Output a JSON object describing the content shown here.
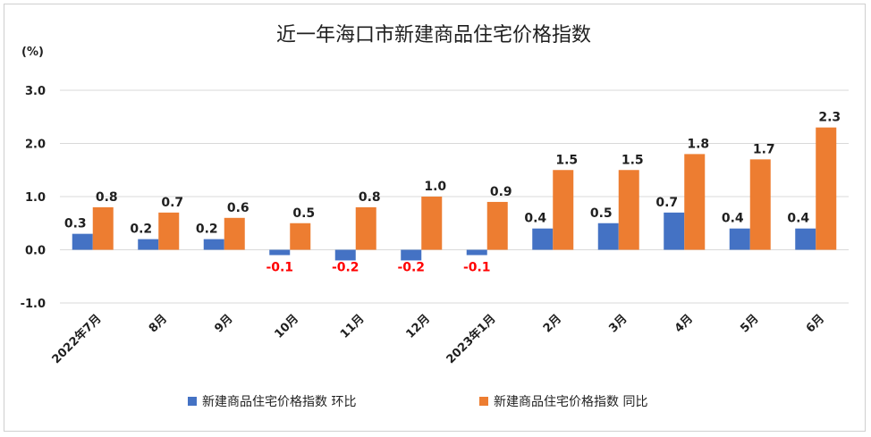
{
  "chart_data": {
    "type": "bar",
    "title": "近一年海口市新建商品住宅价格指数",
    "unit_label": "(%)",
    "categories": [
      "2022年7月",
      "8月",
      "9月",
      "10月",
      "11月",
      "12月",
      "2023年1月",
      "2月",
      "3月",
      "4月",
      "5月",
      "6月"
    ],
    "series": [
      {
        "name": "新建商品住宅价格指数 环比",
        "color": "#4472C4",
        "values": [
          0.3,
          0.2,
          0.2,
          -0.1,
          -0.2,
          -0.2,
          -0.1,
          0.4,
          0.5,
          0.7,
          0.4,
          0.4
        ],
        "labels": [
          "0.3",
          "0.2",
          "0.2",
          "-0.1",
          "-0.2",
          "-0.2",
          "-0.1",
          "0.4",
          "0.5",
          "0.7",
          "0.4",
          "0.4"
        ]
      },
      {
        "name": "新建商品住宅价格指数 同比",
        "color": "#ED7D31",
        "values": [
          0.8,
          0.7,
          0.6,
          0.5,
          0.8,
          1.0,
          0.9,
          1.5,
          1.5,
          1.8,
          1.7,
          2.3
        ],
        "labels": [
          "0.8",
          "0.7",
          "0.6",
          "0.5",
          "0.8",
          "1.0",
          "0.9",
          "1.5",
          "1.5",
          "1.8",
          "1.7",
          "2.3"
        ]
      }
    ],
    "yticks": [
      "3.0",
      "2.0",
      "1.0",
      "0.0",
      "-1.0"
    ],
    "ylim": [
      -1.0,
      3.0
    ],
    "negative_label_color": "#FF0000",
    "grid": true,
    "legend_position": "bottom"
  }
}
